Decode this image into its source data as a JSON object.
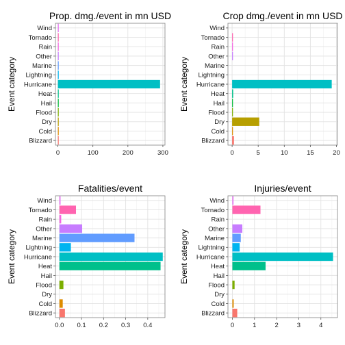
{
  "chart_data": [
    {
      "type": "bar",
      "orientation": "horizontal",
      "title": "Prop. dmg./event in mn USD",
      "ylabel": "Event category",
      "xlabel": "",
      "categories": [
        "Blizzard",
        "Cold",
        "Dry",
        "Flood",
        "Hail",
        "Heat",
        "Hurricane",
        "Lightning",
        "Marine",
        "Other",
        "Rain",
        "Tornado",
        "Wind"
      ],
      "values": [
        0.5,
        0.1,
        1.0,
        1.5,
        0.3,
        1.8,
        292,
        0.2,
        0.1,
        0.1,
        0.1,
        1.6,
        0.3
      ],
      "xlim": [
        -7,
        306
      ],
      "xticks": [
        0,
        100,
        200,
        300
      ],
      "grid": true,
      "legend": "none"
    },
    {
      "type": "bar",
      "orientation": "horizontal",
      "title": "Crop dmg./event in mn USD",
      "ylabel": "Event category",
      "xlabel": "",
      "categories": [
        "Blizzard",
        "Cold",
        "Dry",
        "Flood",
        "Hail",
        "Heat",
        "Hurricane",
        "Lightning",
        "Marine",
        "Other",
        "Rain",
        "Tornado",
        "Wind"
      ],
      "values": [
        0.35,
        0.05,
        5.2,
        0.15,
        0.02,
        0.2,
        19.1,
        0.0,
        0.0,
        0.08,
        0.1,
        0.03,
        0.0
      ],
      "xlim": [
        -0.8,
        20.2
      ],
      "xticks": [
        0,
        5,
        10,
        15,
        20
      ],
      "grid": true,
      "legend": "none"
    },
    {
      "type": "bar",
      "orientation": "horizontal",
      "title": "Fatalities/event",
      "ylabel": "Event category",
      "xlabel": "",
      "categories": [
        "Blizzard",
        "Cold",
        "Dry",
        "Flood",
        "Hail",
        "Heat",
        "Hurricane",
        "Lightning",
        "Marine",
        "Other",
        "Rain",
        "Tornado",
        "Wind"
      ],
      "values": [
        0.025,
        0.015,
        0.0,
        0.018,
        0.0,
        0.458,
        0.468,
        0.052,
        0.34,
        0.103,
        0.008,
        0.075,
        0.005
      ],
      "xlim": [
        -0.018,
        0.478
      ],
      "xticks": [
        0.0,
        0.1,
        0.2,
        0.3,
        0.4
      ],
      "grid": true,
      "legend": "none"
    },
    {
      "type": "bar",
      "orientation": "horizontal",
      "title": "Injuries/event",
      "ylabel": "Event category",
      "xlabel": "",
      "categories": [
        "Blizzard",
        "Cold",
        "Dry",
        "Flood",
        "Hail",
        "Heat",
        "Hurricane",
        "Lightning",
        "Marine",
        "Other",
        "Rain",
        "Tornado",
        "Wind"
      ],
      "values": [
        0.22,
        0.06,
        0.0,
        0.1,
        0.0,
        1.5,
        4.55,
        0.33,
        0.38,
        0.45,
        0.0,
        1.27,
        0.05
      ],
      "xlim": [
        -0.2,
        4.75
      ],
      "xticks": [
        0,
        1,
        2,
        3,
        4
      ],
      "grid": true,
      "legend": "none"
    }
  ],
  "colors": [
    "#F8766D",
    "#DE8C00",
    "#B79F00",
    "#7CAE00",
    "#00BA38",
    "#00C08B",
    "#00BFC4",
    "#00B4F0",
    "#619CFF",
    "#C77CFF",
    "#F564E3",
    "#FF64B0",
    "#E76BF3"
  ]
}
